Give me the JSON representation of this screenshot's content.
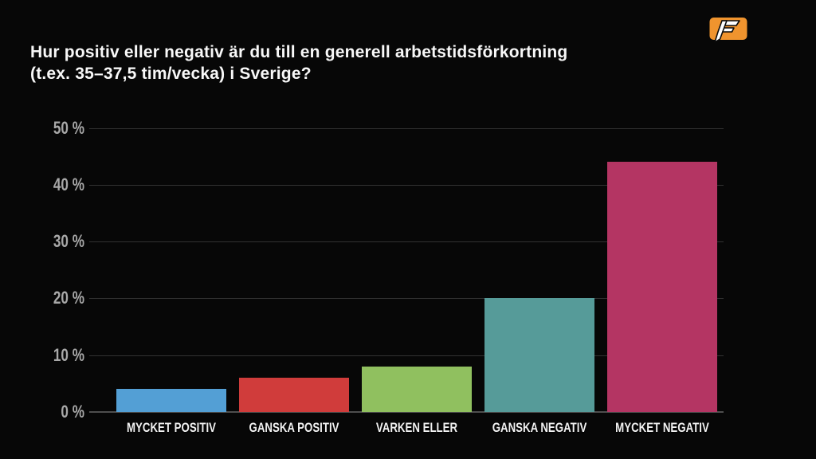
{
  "header": {
    "title_line1": "Hur positiv eller negativ är du till en generell arbetstidsförkortning",
    "title_line2": "(t.ex. 35–37,5 tim/vecka) i Sverige?"
  },
  "logo": {
    "name": "flashback-logo",
    "letter": "F",
    "background_color": "#F0942E",
    "letter_color": "#FFFFFF",
    "outline_color": "#0A0A0A"
  },
  "chart_data": {
    "type": "bar",
    "title": "Hur positiv eller negativ är du till en generell arbetstidsförkortning (t.ex. 35–37,5 tim/vecka) i Sverige?",
    "categories": [
      "MYCKET POSITIV",
      "GANSKA POSITIV",
      "VARKEN ELLER",
      "GANSKA NEGATIV",
      "MYCKET NEGATIV"
    ],
    "values": [
      4,
      6,
      8,
      20,
      44
    ],
    "unit": "%",
    "bar_colors": [
      "#539FD5",
      "#D03C3B",
      "#90C05F",
      "#569B99",
      "#B43563"
    ],
    "xlabel": "",
    "ylabel": "",
    "ylim": [
      0,
      50
    ],
    "yticks": [
      0,
      10,
      20,
      30,
      40,
      50
    ],
    "ytick_format": "{v} %",
    "grid": "horizontal",
    "legend": "none",
    "background_color": "#070707",
    "gridline_color": "#323232",
    "axis_line_color": "#4E4E4E",
    "tick_label_color": "#A8A8A8",
    "category_label_color": "#F2F2F2",
    "title_color": "#F8F8F8"
  }
}
